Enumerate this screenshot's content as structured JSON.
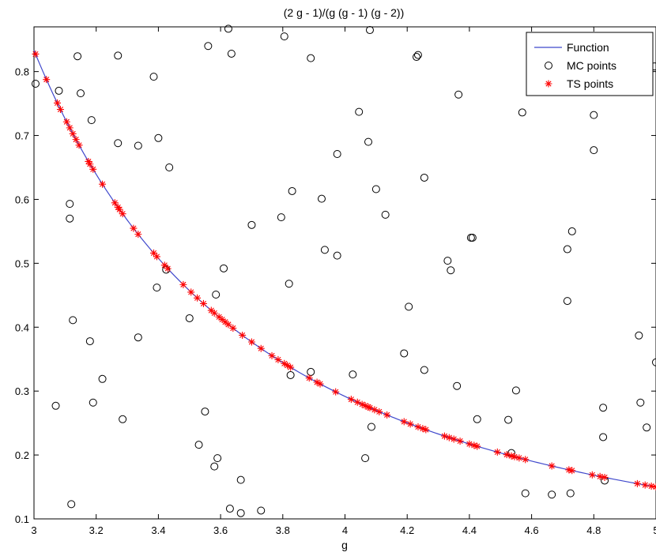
{
  "chart_data": {
    "type": "scatter",
    "title": "(2 g - 1)/(g (g - 1) (g - 2))",
    "xlabel": "g",
    "ylabel": "",
    "xlim": [
      3,
      5
    ],
    "ylim": [
      0.1,
      0.87
    ],
    "xticks": [
      "3",
      "3.2",
      "3.4",
      "3.6",
      "3.8",
      "4",
      "4.2",
      "4.4",
      "4.6",
      "4.8",
      "5"
    ],
    "yticks": [
      "0.1",
      "0.2",
      "0.3",
      "0.4",
      "0.5",
      "0.6",
      "0.7",
      "0.8"
    ],
    "grid": false,
    "legend_position": "top-right",
    "series": [
      {
        "name": "Function",
        "kind": "line",
        "color": "#3f48cc",
        "formula": "(2g-1)/(g(g-1)(g-2))"
      },
      {
        "name": "MC points",
        "kind": "open-circle-markers",
        "color": "#000000",
        "points": [
          [
            3.005,
            0.781
          ],
          [
            3.07,
            0.277
          ],
          [
            3.08,
            0.77
          ],
          [
            3.115,
            0.593
          ],
          [
            3.115,
            0.57
          ],
          [
            3.12,
            0.123
          ],
          [
            3.125,
            0.411
          ],
          [
            3.14,
            0.824
          ],
          [
            3.15,
            0.766
          ],
          [
            3.18,
            0.378
          ],
          [
            3.185,
            0.724
          ],
          [
            3.19,
            0.282
          ],
          [
            3.22,
            0.319
          ],
          [
            3.27,
            0.688
          ],
          [
            3.27,
            0.825
          ],
          [
            3.285,
            0.256
          ],
          [
            3.335,
            0.684
          ],
          [
            3.335,
            0.384
          ],
          [
            3.385,
            0.792
          ],
          [
            3.395,
            0.462
          ],
          [
            3.4,
            0.696
          ],
          [
            3.425,
            0.49
          ],
          [
            3.435,
            0.65
          ],
          [
            3.5,
            0.414
          ],
          [
            3.53,
            0.216
          ],
          [
            3.55,
            0.268
          ],
          [
            3.56,
            0.84
          ],
          [
            3.58,
            0.182
          ],
          [
            3.585,
            0.451
          ],
          [
            3.59,
            0.195
          ],
          [
            3.61,
            0.492
          ],
          [
            3.625,
            0.867
          ],
          [
            3.63,
            0.116
          ],
          [
            3.635,
            0.828
          ],
          [
            3.665,
            0.161
          ],
          [
            3.665,
            0.109
          ],
          [
            3.7,
            0.56
          ],
          [
            3.73,
            0.113
          ],
          [
            3.795,
            0.572
          ],
          [
            3.805,
            0.855
          ],
          [
            3.82,
            0.468
          ],
          [
            3.825,
            0.325
          ],
          [
            3.83,
            0.613
          ],
          [
            3.89,
            0.33
          ],
          [
            3.89,
            0.821
          ],
          [
            3.925,
            0.601
          ],
          [
            3.935,
            0.521
          ],
          [
            3.975,
            0.512
          ],
          [
            3.975,
            0.671
          ],
          [
            4.025,
            0.326
          ],
          [
            4.045,
            0.737
          ],
          [
            4.065,
            0.195
          ],
          [
            4.075,
            0.69
          ],
          [
            4.08,
            0.865
          ],
          [
            4.085,
            0.244
          ],
          [
            4.1,
            0.616
          ],
          [
            4.13,
            0.576
          ],
          [
            4.19,
            0.359
          ],
          [
            4.205,
            0.432
          ],
          [
            4.23,
            0.823
          ],
          [
            4.235,
            0.826
          ],
          [
            4.255,
            0.634
          ],
          [
            4.255,
            0.333
          ],
          [
            4.33,
            0.504
          ],
          [
            4.34,
            0.489
          ],
          [
            4.36,
            0.308
          ],
          [
            4.365,
            0.764
          ],
          [
            4.405,
            0.54
          ],
          [
            4.41,
            0.54
          ],
          [
            4.425,
            0.256
          ],
          [
            4.525,
            0.255
          ],
          [
            4.535,
            0.203
          ],
          [
            4.55,
            0.301
          ],
          [
            4.57,
            0.736
          ],
          [
            4.58,
            0.14
          ],
          [
            4.665,
            0.138
          ],
          [
            4.715,
            0.522
          ],
          [
            4.715,
            0.441
          ],
          [
            4.725,
            0.14
          ],
          [
            4.73,
            0.55
          ],
          [
            4.8,
            0.732
          ],
          [
            4.8,
            0.677
          ],
          [
            4.83,
            0.228
          ],
          [
            4.83,
            0.274
          ],
          [
            4.835,
            0.16
          ],
          [
            4.945,
            0.387
          ],
          [
            4.95,
            0.282
          ],
          [
            4.97,
            0.243
          ],
          [
            4.995,
            0.808
          ],
          [
            5.0,
            0.345
          ]
        ]
      },
      {
        "name": "TS points",
        "kind": "star-markers",
        "color": "#ff0000",
        "x": [
          3.005,
          3.04,
          3.075,
          3.085,
          3.105,
          3.115,
          3.125,
          3.135,
          3.145,
          3.175,
          3.18,
          3.19,
          3.22,
          3.26,
          3.27,
          3.275,
          3.285,
          3.32,
          3.335,
          3.385,
          3.395,
          3.42,
          3.43,
          3.48,
          3.505,
          3.525,
          3.545,
          3.57,
          3.58,
          3.595,
          3.605,
          3.615,
          3.625,
          3.64,
          3.67,
          3.7,
          3.73,
          3.765,
          3.785,
          3.805,
          3.815,
          3.825,
          3.885,
          3.91,
          3.92,
          3.97,
          4.02,
          4.04,
          4.055,
          4.065,
          4.075,
          4.08,
          4.095,
          4.11,
          4.135,
          4.19,
          4.21,
          4.235,
          4.25,
          4.26,
          4.32,
          4.335,
          4.35,
          4.37,
          4.4,
          4.415,
          4.425,
          4.49,
          4.52,
          4.535,
          4.545,
          4.56,
          4.58,
          4.665,
          4.72,
          4.73,
          4.795,
          4.82,
          4.835,
          4.94,
          4.965,
          4.985,
          5.0
        ]
      }
    ]
  }
}
